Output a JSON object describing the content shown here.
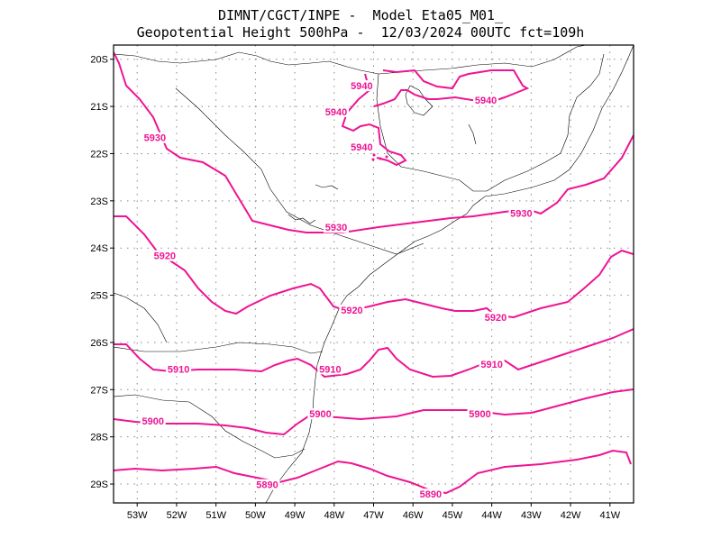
{
  "header": {
    "line1": "DIMNT/CGCT/INPE -  Model Eta05_M01_",
    "line2": "Geopotential Height 500hPa -  12/03/2024 00UTC fct=109h"
  },
  "colors": {
    "contour": "#ee1493",
    "coast": "#000000",
    "grid": "#888888",
    "frame": "#000000"
  },
  "map": {
    "lon_range": [
      -53.6,
      -40.4
    ],
    "lat_range": [
      -29.4,
      -19.7
    ],
    "lon_ticks": [
      {
        "lon": -53,
        "label": "53W"
      },
      {
        "lon": -52,
        "label": "52W"
      },
      {
        "lon": -51,
        "label": "51W"
      },
      {
        "lon": -50,
        "label": "50W"
      },
      {
        "lon": -49,
        "label": "49W"
      },
      {
        "lon": -48,
        "label": "48W"
      },
      {
        "lon": -47,
        "label": "47W"
      },
      {
        "lon": -46,
        "label": "46W"
      },
      {
        "lon": -45,
        "label": "45W"
      },
      {
        "lon": -44,
        "label": "44W"
      },
      {
        "lon": -43,
        "label": "43W"
      },
      {
        "lon": -42,
        "label": "42W"
      },
      {
        "lon": -41,
        "label": "41W"
      }
    ],
    "lat_ticks": [
      {
        "lat": -20,
        "label": "20S"
      },
      {
        "lat": -21,
        "label": "21S"
      },
      {
        "lat": -22,
        "label": "22S"
      },
      {
        "lat": -23,
        "label": "23S"
      },
      {
        "lat": -24,
        "label": "24S"
      },
      {
        "lat": -25,
        "label": "25S"
      },
      {
        "lat": -26,
        "label": "26S"
      },
      {
        "lat": -27,
        "label": "27S"
      },
      {
        "lat": -28,
        "label": "28S"
      },
      {
        "lat": -29,
        "label": "29S"
      }
    ],
    "contours": [
      {
        "value": 5940,
        "labels": [
          {
            "label": "5940",
            "lon": -47.3,
            "lat": -20.6
          },
          {
            "label": "5940",
            "lon": -44.15,
            "lat": -20.9
          },
          {
            "label": "5940",
            "lon": -47.95,
            "lat": -21.15
          },
          {
            "label": "5940",
            "lon": -47.3,
            "lat": -21.9
          }
        ]
      },
      {
        "value": 5930,
        "labels": [
          {
            "label": "5930",
            "lon": -52.55,
            "lat": -21.7
          },
          {
            "label": "5930",
            "lon": -47.95,
            "lat": -23.6
          },
          {
            "label": "5930",
            "lon": -43.25,
            "lat": -23.3
          }
        ]
      },
      {
        "value": 5920,
        "labels": [
          {
            "label": "5920",
            "lon": -52.3,
            "lat": -24.2
          },
          {
            "label": "5920",
            "lon": -47.55,
            "lat": -25.35
          },
          {
            "label": "5920",
            "lon": -43.9,
            "lat": -25.5
          }
        ]
      },
      {
        "value": 5910,
        "labels": [
          {
            "label": "5910",
            "lon": -51.95,
            "lat": -26.6
          },
          {
            "label": "5910",
            "lon": -48.1,
            "lat": -26.6
          },
          {
            "label": "5910",
            "lon": -44.0,
            "lat": -26.5
          }
        ]
      },
      {
        "value": 5900,
        "labels": [
          {
            "label": "5900",
            "lon": -52.6,
            "lat": -27.7
          },
          {
            "label": "5900",
            "lon": -48.35,
            "lat": -27.55
          },
          {
            "label": "5900",
            "lon": -44.3,
            "lat": -27.55
          }
        ]
      },
      {
        "value": 5890,
        "labels": [
          {
            "label": "5890",
            "lon": -49.7,
            "lat": -29.05
          },
          {
            "label": "5890",
            "lon": -45.55,
            "lat": -29.25
          }
        ]
      }
    ]
  }
}
